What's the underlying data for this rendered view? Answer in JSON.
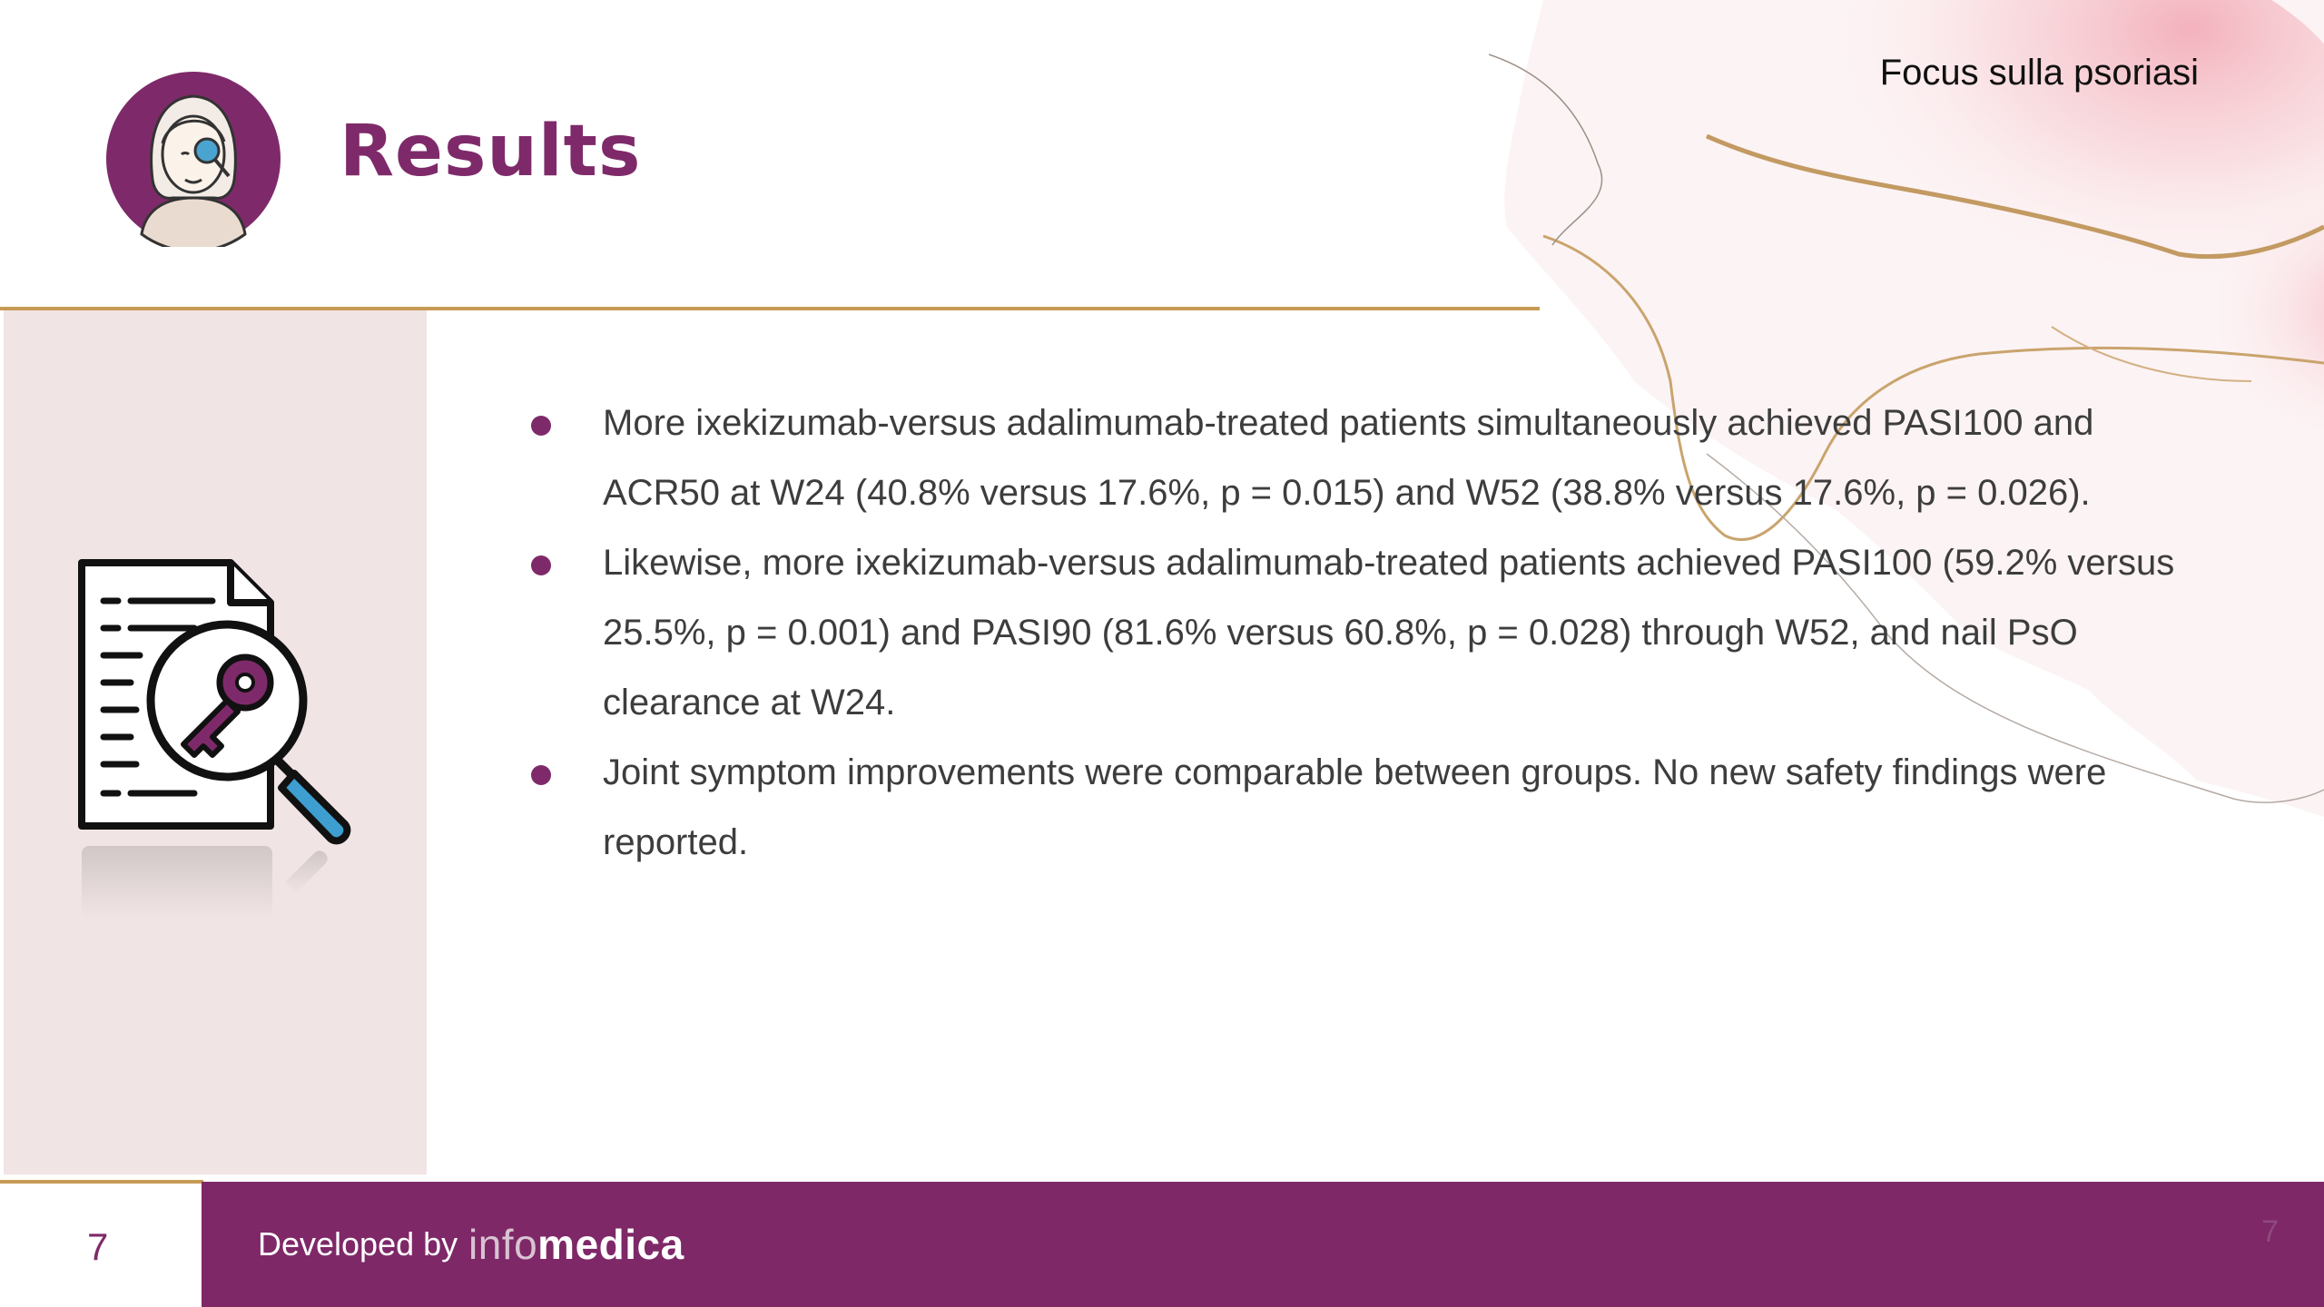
{
  "header": {
    "topic": "Focus sulla psoriasi",
    "title": "Results"
  },
  "icons": {
    "avatar": "woman-magnifier-avatar-icon",
    "illustration": "document-key-search-icon"
  },
  "bullets": [
    "More ixekizumab-versus adalimumab-treated patients simultaneously achieved PASI100 and ACR50 at W24 (40.8% versus 17.6%, p = 0.015) and W52 (38.8% versus 17.6%, p = 0.026).",
    "Likewise, more ixekizumab-versus adalimumab-treated patients achieved PASI100 (59.2% versus 25.5%, p = 0.001) and PASI90 (81.6% versus 60.8%, p = 0.028) through W52, and nail PsO clearance at W24.",
    "Joint symptom improvements were comparable between groups. No new safety findings were reported."
  ],
  "footer": {
    "page_number": "7",
    "developed_by": "Developed by",
    "brand_light": "info",
    "brand_bold": "medica",
    "ghost_page_number": "7"
  },
  "colors": {
    "brand_purple": "#7e2868",
    "accent_gold": "#c79a55",
    "panel_pink": "#f1e4e4"
  }
}
